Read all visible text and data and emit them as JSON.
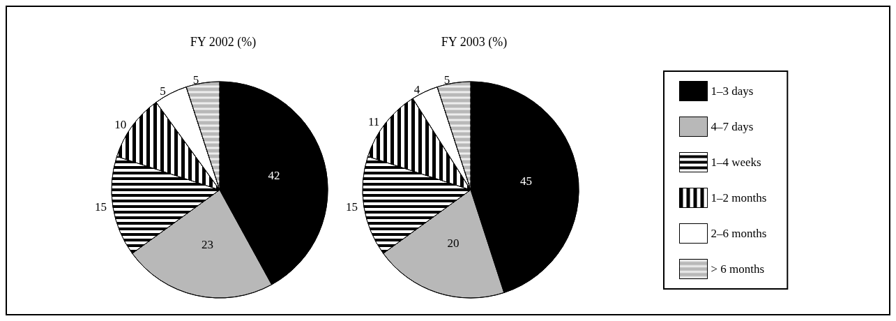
{
  "chart_data": {
    "type": "pie",
    "categories": [
      "1–3 days",
      "4–7 days",
      "1–4 weeks",
      "1–2 months",
      "2–6 months",
      "> 6 months"
    ],
    "colors": [
      "#000000",
      "#b8b8b8",
      "#000000",
      "#000000",
      "#ffffff",
      "#b8b8b8"
    ],
    "data_labels": true,
    "legend": "right",
    "series": [
      {
        "name": "FY 2002 (%)",
        "values": [
          42,
          23,
          15,
          10,
          5,
          5
        ]
      },
      {
        "name": "FY 2003 (%)",
        "values": [
          45,
          20,
          15,
          11,
          4,
          5
        ]
      }
    ]
  }
}
